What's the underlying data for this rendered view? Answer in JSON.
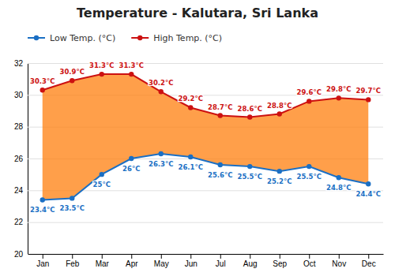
{
  "chart_data": {
    "type": "line",
    "title": "Temperature - Kalutara, Sri Lanka",
    "categories": [
      "Jan",
      "Feb",
      "Mar",
      "Apr",
      "May",
      "Jun",
      "Jul",
      "Aug",
      "Sep",
      "Oct",
      "Nov",
      "Dec"
    ],
    "series": [
      {
        "name": "Low Temp. (°C)",
        "color": "#1a6fc4",
        "marker": "circle",
        "values": [
          23.4,
          23.5,
          25.0,
          26.0,
          26.3,
          26.1,
          25.6,
          25.5,
          25.2,
          25.5,
          24.8,
          24.4
        ],
        "value_labels": [
          "23.4°C",
          "23.5°C",
          "25°C",
          "26°C",
          "26.3°C",
          "26.1°C",
          "25.6°C",
          "25.5°C",
          "25.2°C",
          "25.5°C",
          "24.8°C",
          "24.4°C"
        ]
      },
      {
        "name": "High Temp. (°C)",
        "color": "#cc1111",
        "marker": "circle",
        "values": [
          30.3,
          30.9,
          31.3,
          31.3,
          30.2,
          29.2,
          28.7,
          28.6,
          28.8,
          29.6,
          29.8,
          29.7
        ],
        "value_labels": [
          "30.3°C",
          "30.9°C",
          "31.3°C",
          "31.3°C",
          "30.2°C",
          "29.2°C",
          "28.7°C",
          "28.6°C",
          "28.8°C",
          "29.6°C",
          "29.8°C",
          "29.7°C"
        ]
      }
    ],
    "ylim": [
      20,
      32
    ],
    "yticks": [
      20,
      22,
      24,
      26,
      28,
      30,
      32
    ],
    "grid": true,
    "legend": "top",
    "data_labels": true
  }
}
